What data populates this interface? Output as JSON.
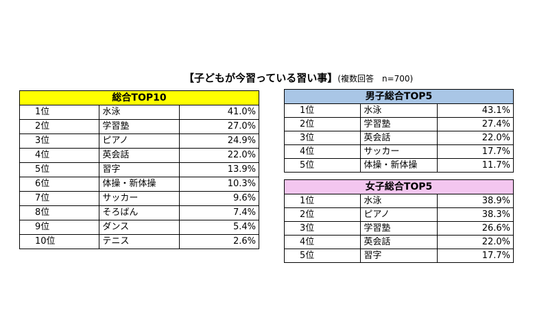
{
  "title": "【子どもが今習っている習い事】",
  "subtitle": "(複数回答　n=700)",
  "chart_data": [
    {
      "type": "table",
      "title": "総合TOP10",
      "header_color": "#ffff00",
      "rows": [
        {
          "rank": "1位",
          "name": "水泳",
          "value": "41.0%"
        },
        {
          "rank": "2位",
          "name": "学習塾",
          "value": "27.0%"
        },
        {
          "rank": "3位",
          "name": "ピアノ",
          "value": "24.9%"
        },
        {
          "rank": "4位",
          "name": "英会話",
          "value": "22.0%"
        },
        {
          "rank": "5位",
          "name": "習字",
          "value": "13.9%"
        },
        {
          "rank": "6位",
          "name": "体操・新体操",
          "value": "10.3%"
        },
        {
          "rank": "7位",
          "name": "サッカー",
          "value": "9.6%"
        },
        {
          "rank": "8位",
          "name": "そろばん",
          "value": "7.4%"
        },
        {
          "rank": "9位",
          "name": "ダンス",
          "value": "5.4%"
        },
        {
          "rank": "10位",
          "name": "テニス",
          "value": "2.6%"
        }
      ]
    },
    {
      "type": "table",
      "title": "男子総合TOP5",
      "header_color": "#a9c6e6",
      "rows": [
        {
          "rank": "1位",
          "name": "水泳",
          "value": "43.1%"
        },
        {
          "rank": "2位",
          "name": "学習塾",
          "value": "27.4%"
        },
        {
          "rank": "3位",
          "name": "英会話",
          "value": "22.0%"
        },
        {
          "rank": "4位",
          "name": "サッカー",
          "value": "17.7%"
        },
        {
          "rank": "5位",
          "name": "体操・新体操",
          "value": "11.7%"
        }
      ]
    },
    {
      "type": "table",
      "title": "女子総合TOP5",
      "header_color": "#f3c6ef",
      "rows": [
        {
          "rank": "1位",
          "name": "水泳",
          "value": "38.9%"
        },
        {
          "rank": "2位",
          "name": "ピアノ",
          "value": "38.3%"
        },
        {
          "rank": "3位",
          "name": "学習塾",
          "value": "26.6%"
        },
        {
          "rank": "4位",
          "name": "英会話",
          "value": "22.0%"
        },
        {
          "rank": "5位",
          "name": "習字",
          "value": "17.7%"
        }
      ]
    }
  ]
}
